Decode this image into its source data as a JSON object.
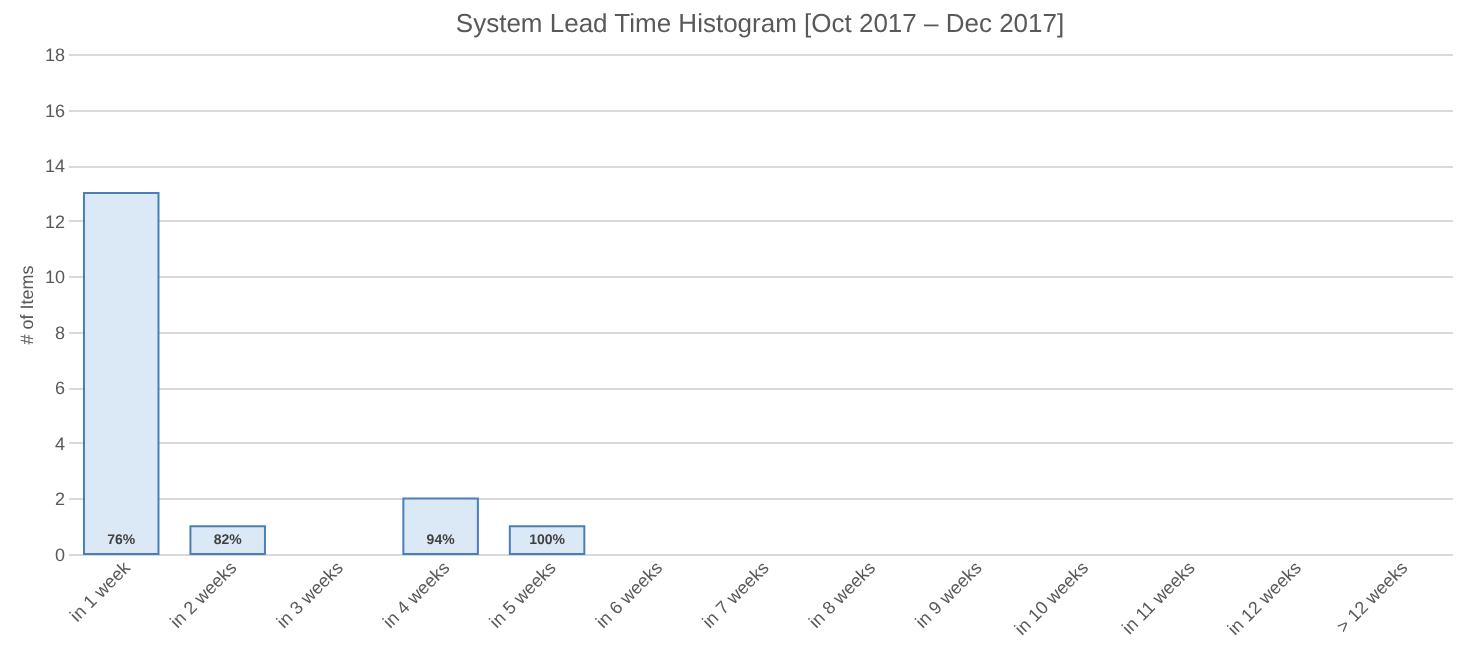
{
  "chart_data": {
    "type": "bar",
    "title": "System Lead Time Histogram [Oct 2017 – Dec 2017]",
    "ylabel": "# of Items",
    "categories": [
      "in 1 week",
      "in 2 weeks",
      "in 3 weeks",
      "in 4 weeks",
      "in 5 weeks",
      "in 6 weeks",
      "in 7 weeks",
      "in 8 weeks",
      "in 9 weeks",
      "in 10 weeks",
      "in 11 weeks",
      "in 12 weeks",
      "> 12 weeks"
    ],
    "values": [
      13,
      1,
      0,
      2,
      1,
      0,
      0,
      0,
      0,
      0,
      0,
      0,
      0
    ],
    "annotations": [
      {
        "text": "76%",
        "x": "in 1 week",
        "y": 0
      },
      {
        "text": "82%",
        "x": "in 2 weeks",
        "y": 0
      },
      {
        "text": "94%",
        "x": "in 4 weeks",
        "y": 0
      },
      {
        "text": "100%",
        "x": "in 5 weeks",
        "y": 0
      }
    ],
    "color": "#dbe9f6",
    "ylim": [
      0,
      18
    ],
    "yticks": [
      0,
      2,
      4,
      6,
      8,
      10,
      12,
      14,
      16,
      18
    ],
    "grid": "y"
  }
}
